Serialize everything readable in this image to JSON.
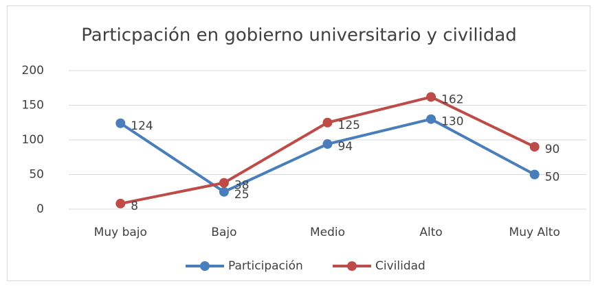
{
  "chart_data": {
    "type": "line",
    "title": "Particpación en gobierno universitario y civilidad",
    "categories": [
      "Muy bajo",
      "Bajo",
      "Medio",
      "Alto",
      "Muy Alto"
    ],
    "series": [
      {
        "name": "Participación",
        "color": "#4a7ebb",
        "values": [
          124,
          25,
          94,
          130,
          50
        ]
      },
      {
        "name": "Civilidad",
        "color": "#be4b48",
        "values": [
          8,
          38,
          125,
          162,
          90
        ]
      }
    ],
    "ylim": [
      0,
      200
    ],
    "yticks": [
      0,
      50,
      100,
      150,
      200
    ],
    "grid": true,
    "legend": "bottom"
  }
}
